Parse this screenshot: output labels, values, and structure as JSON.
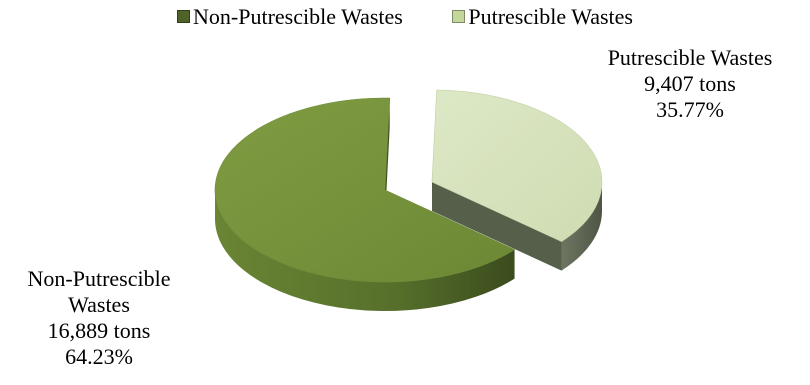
{
  "chart_data": {
    "type": "pie",
    "style": "3d-exploded",
    "title": "",
    "legend_position": "top",
    "slices": [
      {
        "name": "Non-Putrescible Wastes",
        "label_name_lines": [
          "Non-Putrescible",
          "Wastes"
        ],
        "value": 16889,
        "value_text": "16,889 tons",
        "percent": 64.23,
        "percent_text": "64.23%",
        "color": "#77933C",
        "side_color": "#4F6228"
      },
      {
        "name": "Putrescible Wastes",
        "label_name_lines": [
          "Putrescible Wastes"
        ],
        "value": 9407,
        "value_text": "9,407 tons",
        "percent": 35.77,
        "percent_text": "35.77%",
        "color": "#D7E4BD",
        "side_color": "#5B6350"
      }
    ]
  },
  "legend": {
    "items": [
      {
        "label": "Non-Putrescible Wastes",
        "color": "#4F6228"
      },
      {
        "label": "Putrescible Wastes",
        "color": "#C3D69B"
      }
    ]
  }
}
